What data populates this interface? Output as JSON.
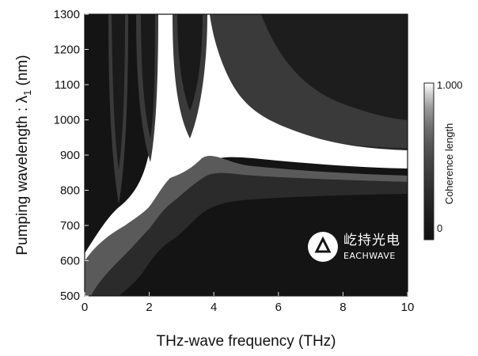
{
  "chart_data": {
    "type": "heatmap",
    "title": "",
    "xlabel": "THz-wave frequency (THz)",
    "ylabel": "Pumping wavelength : λ",
    "ylabel_sub": "1",
    "ylabel_unit": " (nm)",
    "xlim": [
      0,
      10
    ],
    "ylim": [
      500,
      1300
    ],
    "xticks": [
      0,
      2,
      4,
      6,
      8,
      10
    ],
    "yticks": [
      500,
      600,
      700,
      800,
      900,
      1000,
      1100,
      1200,
      1300
    ],
    "colorbar": {
      "label": "Coherence length",
      "max_label": "1.000",
      "min_label": "0",
      "range": [
        0,
        1
      ]
    },
    "grid": false,
    "white_band_centerline": [
      {
        "x": 0.0,
        "y": 500
      },
      {
        "x": 0.4,
        "y": 560
      },
      {
        "x": 0.8,
        "y": 610
      },
      {
        "x": 1.2,
        "y": 650
      },
      {
        "x": 1.6,
        "y": 720
      },
      {
        "x": 2.0,
        "y": 740
      },
      {
        "x": 2.4,
        "y": 800
      },
      {
        "x": 3.0,
        "y": 790
      },
      {
        "x": 3.5,
        "y": 810
      },
      {
        "x": 4.0,
        "y": 870
      },
      {
        "x": 5.0,
        "y": 875
      },
      {
        "x": 6.0,
        "y": 870
      },
      {
        "x": 8.0,
        "y": 860
      },
      {
        "x": 10.0,
        "y": 855
      }
    ],
    "resonance_lobes_x": [
      1.0,
      2.0,
      3.2
    ],
    "resonance_peak_x": 4.1
  },
  "watermark": {
    "cn": "屹持光电",
    "en": "EACHWAVE"
  },
  "colors": {
    "background": "#141414",
    "band": "#ffffff"
  }
}
